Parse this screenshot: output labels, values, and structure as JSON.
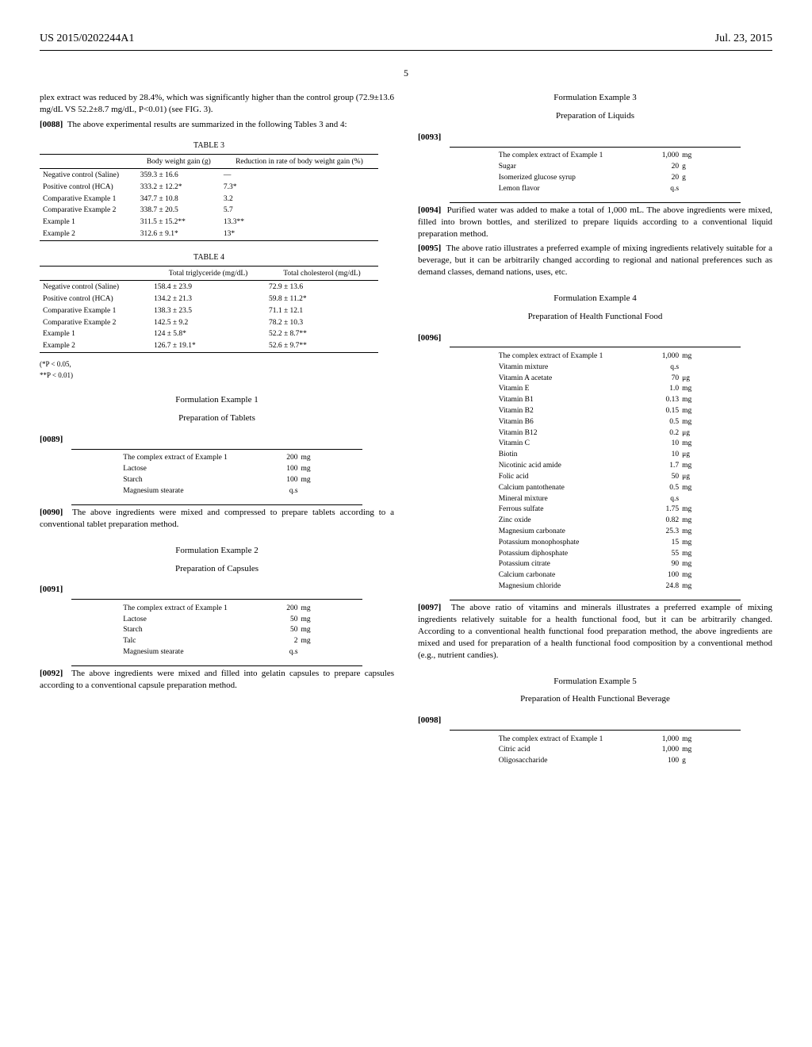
{
  "header": {
    "left": "US 2015/0202244A1",
    "right": "Jul. 23, 2015"
  },
  "page_number": "5",
  "col1": {
    "intro_text": "plex extract was reduced by 28.4%, which was significantly higher than the control group (72.9±13.6 mg/dL VS 52.2±8.7 mg/dL, P<0.01) (see FIG. 3).",
    "p0088_label": "[0088]",
    "p0088_text": "The above experimental results are summarized in the following Tables 3 and 4:",
    "table3": {
      "caption": "TABLE 3",
      "col1_header": "",
      "col2_header": "Body weight gain (g)",
      "col3_header": "Reduction in rate of body weight gain (%)",
      "rows": [
        {
          "label": "Negative control (Saline)",
          "bw": "359.3 ± 16.6",
          "red": "—"
        },
        {
          "label": "Positive control (HCA)",
          "bw": "333.2 ± 12.2*",
          "red": "7.3*"
        },
        {
          "label": "Comparative Example 1",
          "bw": "347.7 ± 10.8",
          "red": "3.2"
        },
        {
          "label": "Comparative Example 2",
          "bw": "338.7 ± 20.5",
          "red": "5.7"
        },
        {
          "label": "Example 1",
          "bw": "311.5 ± 15.2**",
          "red": "13.3**"
        },
        {
          "label": "Example 2",
          "bw": "312.6 ± 9.1*",
          "red": "13*"
        }
      ]
    },
    "table4": {
      "caption": "TABLE 4",
      "col2_header": "Total triglyceride (mg/dL)",
      "col3_header": "Total cholesterol (mg/dL)",
      "rows": [
        {
          "label": "Negative control (Saline)",
          "tg": "158.4 ± 23.9",
          "tc": "72.9 ± 13.6"
        },
        {
          "label": "Positive control (HCA)",
          "tg": "134.2 ± 21.3",
          "tc": "59.8 ± 11.2*"
        },
        {
          "label": "Comparative Example 1",
          "tg": "138.3 ± 23.5",
          "tc": "71.1 ± 12.1"
        },
        {
          "label": "Comparative Example 2",
          "tg": "142.5 ± 9.2",
          "tc": "78.2 ± 10.3"
        },
        {
          "label": "Example 1",
          "tg": "124 ± 5.8*",
          "tc": "52.2 ± 8.7**"
        },
        {
          "label": "Example 2",
          "tg": "126.7 ± 19.1*",
          "tc": "52.6 ± 9.7**"
        }
      ],
      "footnote1": "(*P < 0.05,",
      "footnote2": "**P < 0.01)"
    },
    "form1": {
      "title": "Formulation Example 1",
      "subtitle": "Preparation of Tablets",
      "para_label": "[0089]",
      "rows": [
        {
          "name": "The complex extract of Example 1",
          "amt": "200",
          "unit": "mg"
        },
        {
          "name": "Lactose",
          "amt": "100",
          "unit": "mg"
        },
        {
          "name": "Starch",
          "amt": "100",
          "unit": "mg"
        },
        {
          "name": "Magnesium stearate",
          "amt": "q.s",
          "unit": ""
        }
      ],
      "p0090_label": "[0090]",
      "p0090_text": "The above ingredients were mixed and compressed to prepare tablets according to a conventional tablet preparation method."
    },
    "form2": {
      "title": "Formulation Example 2",
      "subtitle": "Preparation of Capsules",
      "para_label": "[0091]",
      "rows": [
        {
          "name": "The complex extract of Example 1",
          "amt": "200",
          "unit": "mg"
        },
        {
          "name": "Lactose",
          "amt": "50",
          "unit": "mg"
        },
        {
          "name": "Starch",
          "amt": "50",
          "unit": "mg"
        },
        {
          "name": "Talc",
          "amt": "2",
          "unit": "mg"
        },
        {
          "name": "Magnesium stearate",
          "amt": "q.s",
          "unit": ""
        }
      ],
      "p0092_label": "[0092]",
      "p0092_text": "The above ingredients were mixed and filled into gelatin capsules to prepare capsules according to a conventional capsule preparation method."
    }
  },
  "col2": {
    "form3": {
      "title": "Formulation Example 3",
      "subtitle": "Preparation of Liquids",
      "para_label": "[0093]",
      "rows": [
        {
          "name": "The complex extract of Example 1",
          "amt": "1,000",
          "unit": "mg"
        },
        {
          "name": "Sugar",
          "amt": "20",
          "unit": "g"
        },
        {
          "name": "Isomerized glucose syrup",
          "amt": "20",
          "unit": "g"
        },
        {
          "name": "Lemon flavor",
          "amt": "q.s",
          "unit": ""
        }
      ],
      "p0094_label": "[0094]",
      "p0094_text": "Purified water was added to make a total of 1,000 mL. The above ingredients were mixed, filled into brown bottles, and sterilized to prepare liquids according to a conventional liquid preparation method.",
      "p0095_label": "[0095]",
      "p0095_text": "The above ratio illustrates a preferred example of mixing ingredients relatively suitable for a beverage, but it can be arbitrarily changed according to regional and national preferences such as demand classes, demand nations, uses, etc."
    },
    "form4": {
      "title": "Formulation Example 4",
      "subtitle": "Preparation of Health Functional Food",
      "para_label": "[0096]",
      "rows": [
        {
          "name": "The complex extract of Example 1",
          "amt": "1,000",
          "unit": "mg"
        },
        {
          "name": "Vitamin mixture",
          "amt": "q.s",
          "unit": ""
        },
        {
          "name": "Vitamin A acetate",
          "amt": "70",
          "unit": "μg"
        },
        {
          "name": "Vitamin E",
          "amt": "1.0",
          "unit": "mg"
        },
        {
          "name": "Vitamin B1",
          "amt": "0.13",
          "unit": "mg"
        },
        {
          "name": "Vitamin B2",
          "amt": "0.15",
          "unit": "mg"
        },
        {
          "name": "Vitamin B6",
          "amt": "0.5",
          "unit": "mg"
        },
        {
          "name": "Vitamin B12",
          "amt": "0.2",
          "unit": "μg"
        },
        {
          "name": "Vitamin C",
          "amt": "10",
          "unit": "mg"
        },
        {
          "name": "Biotin",
          "amt": "10",
          "unit": "μg"
        },
        {
          "name": "Nicotinic acid amide",
          "amt": "1.7",
          "unit": "mg"
        },
        {
          "name": "Folic acid",
          "amt": "50",
          "unit": "μg"
        },
        {
          "name": "Calcium pantothenate",
          "amt": "0.5",
          "unit": "mg"
        },
        {
          "name": "Mineral mixture",
          "amt": "q.s",
          "unit": ""
        },
        {
          "name": "Ferrous sulfate",
          "amt": "1.75",
          "unit": "mg"
        },
        {
          "name": "Zinc oxide",
          "amt": "0.82",
          "unit": "mg"
        },
        {
          "name": "Magnesium carbonate",
          "amt": "25.3",
          "unit": "mg"
        },
        {
          "name": "Potassium monophosphate",
          "amt": "15",
          "unit": "mg"
        },
        {
          "name": "Potassium diphosphate",
          "amt": "55",
          "unit": "mg"
        },
        {
          "name": "Potassium citrate",
          "amt": "90",
          "unit": "mg"
        },
        {
          "name": "Calcium carbonate",
          "amt": "100",
          "unit": "mg"
        },
        {
          "name": "Magnesium chloride",
          "amt": "24.8",
          "unit": "mg"
        }
      ],
      "p0097_label": "[0097]",
      "p0097_text": "The above ratio of vitamins and minerals illustrates a preferred example of mixing ingredients relatively suitable for a health functional food, but it can be arbitrarily changed. According to a conventional health functional food preparation method, the above ingredients are mixed and used for preparation of a health functional food composition by a conventional method (e.g., nutrient candies)."
    },
    "form5": {
      "title": "Formulation Example 5",
      "subtitle": "Preparation of Health Functional Beverage",
      "para_label": "[0098]",
      "rows": [
        {
          "name": "The complex extract of Example 1",
          "amt": "1,000",
          "unit": "mg"
        },
        {
          "name": "Citric acid",
          "amt": "1,000",
          "unit": "mg"
        },
        {
          "name": "Oligosaccharide",
          "amt": "100",
          "unit": "g"
        }
      ]
    }
  }
}
